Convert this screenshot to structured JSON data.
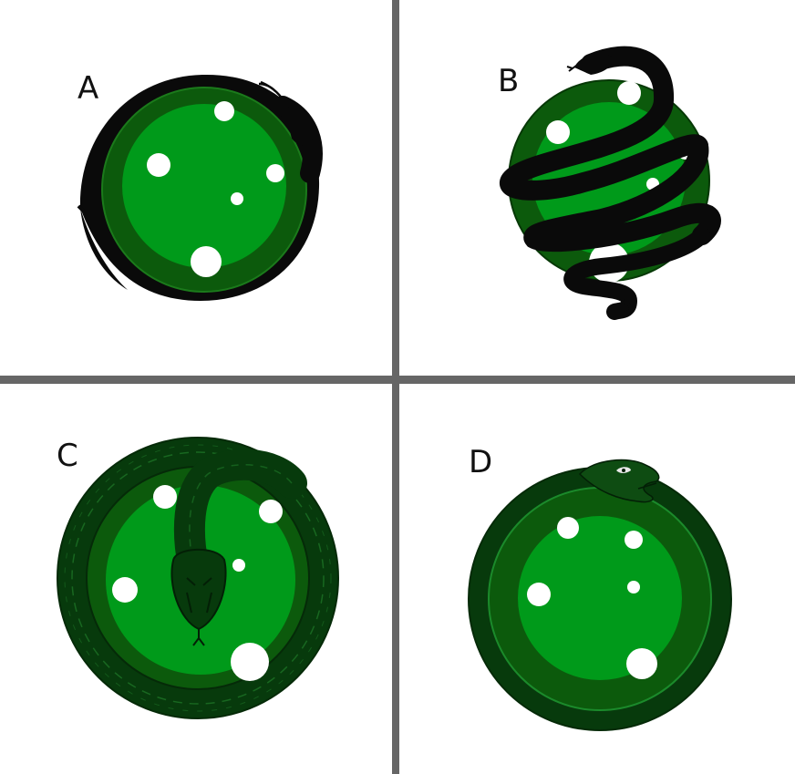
{
  "panels": [
    {
      "id": "A",
      "label": "A"
    },
    {
      "id": "B",
      "label": "B"
    },
    {
      "id": "C",
      "label": "C"
    },
    {
      "id": "D",
      "label": "D"
    }
  ],
  "colors": {
    "background": "#ffffff",
    "divider": "#666666",
    "sphere_light": "#009a1a",
    "sphere_dark": "#0c5a0c",
    "sphere_outline": "#063806",
    "snake_black": "#0a0a0a",
    "snake_green_dark": "#073a0c",
    "snake_green_mid": "#0e4c12",
    "spot": "#ffffff"
  }
}
